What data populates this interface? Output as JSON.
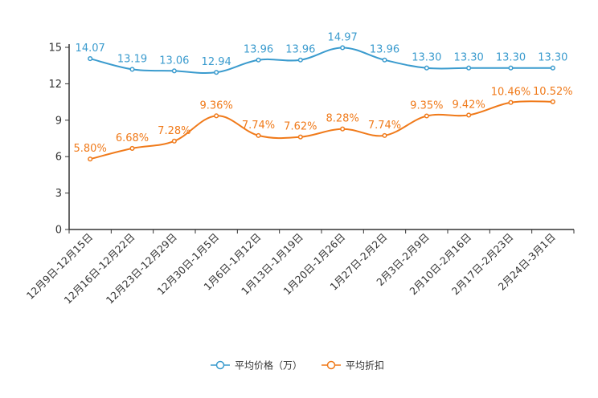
{
  "chart_data": {
    "type": "line",
    "title": "",
    "xlabel": "",
    "ylabel": "",
    "ylim": [
      0,
      15
    ],
    "yticks": [
      0,
      3,
      6,
      9,
      12,
      15
    ],
    "categories": [
      "12月9日-12月15日",
      "12月16日-12月22日",
      "12月23日-12月29日",
      "12月30日-1月5日",
      "1月6日-1月12日",
      "1月13日-1月19日",
      "1月20日-1月26日",
      "1月27日-2月2日",
      "2月3日-2月9日",
      "2月10日-2月16日",
      "2月17日-2月23日",
      "2月24日-3月1日"
    ],
    "series": [
      {
        "name": "平均价格（万）",
        "color": "#3a9bce",
        "values": [
          14.07,
          13.19,
          13.06,
          12.94,
          13.96,
          13.96,
          14.97,
          13.96,
          13.3,
          13.3,
          13.3,
          13.3
        ],
        "labels": [
          "14.07",
          "13.19",
          "13.06",
          "12.94",
          "13.96",
          "13.96",
          "14.97",
          "13.96",
          "13.30",
          "13.30",
          "13.30",
          "13.30"
        ]
      },
      {
        "name": "平均折扣",
        "color": "#f07a1a",
        "values": [
          5.8,
          6.68,
          7.28,
          9.36,
          7.74,
          7.62,
          8.28,
          7.74,
          9.35,
          9.42,
          10.46,
          10.52
        ],
        "labels": [
          "5.80%",
          "6.68%",
          "7.28%",
          "9.36%",
          "7.74%",
          "7.62%",
          "8.28%",
          "7.74%",
          "9.35%",
          "9.42%",
          "10.46%",
          "10.52%"
        ]
      }
    ],
    "legend": "bottom-center",
    "grid": false
  }
}
